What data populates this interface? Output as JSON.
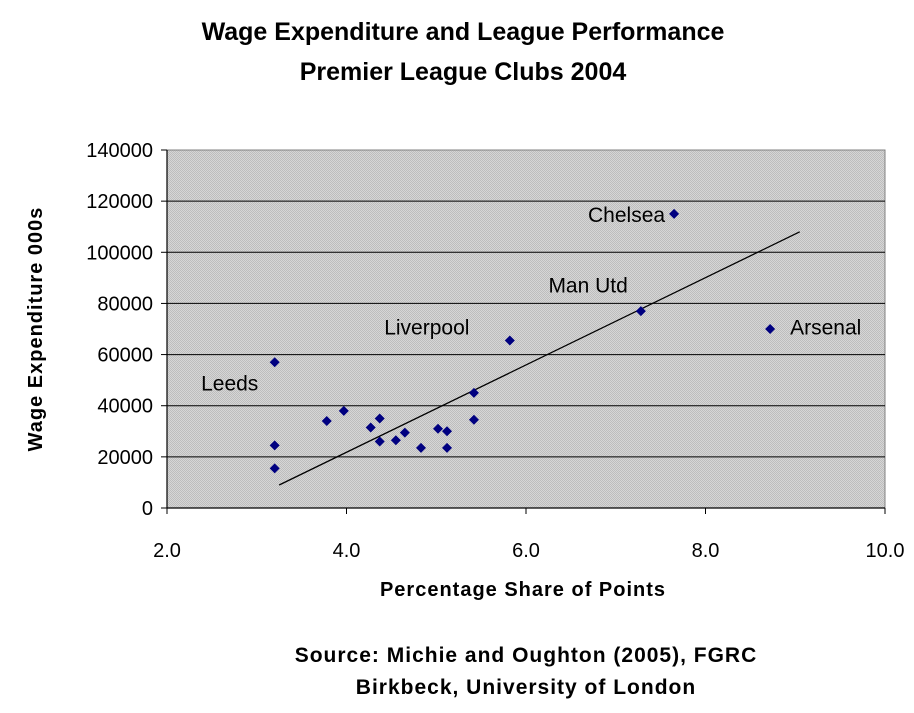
{
  "chart_data": {
    "type": "scatter",
    "title": "Wage Expenditure and League Performance",
    "subtitle": "Premier League Clubs 2004",
    "xlabel": "Percentage Share of Points",
    "ylabel": "Wage Expenditure 000s",
    "xlim": [
      2.0,
      10.0
    ],
    "ylim": [
      0,
      140000
    ],
    "xticks": [
      "2.0",
      "4.0",
      "6.0",
      "8.0",
      "10.0"
    ],
    "yticks": [
      "0",
      "20000",
      "40000",
      "60000",
      "80000",
      "100000",
      "120000",
      "140000"
    ],
    "grid": true,
    "plot_background": "#c0c0c0",
    "marker_color": "#000080",
    "points": [
      {
        "x": 3.2,
        "y": 57000
      },
      {
        "x": 3.2,
        "y": 24500
      },
      {
        "x": 3.2,
        "y": 15500
      },
      {
        "x": 3.78,
        "y": 34000
      },
      {
        "x": 3.97,
        "y": 38000
      },
      {
        "x": 4.27,
        "y": 31500
      },
      {
        "x": 4.37,
        "y": 35000
      },
      {
        "x": 4.37,
        "y": 26000
      },
      {
        "x": 4.55,
        "y": 26500
      },
      {
        "x": 4.65,
        "y": 29500
      },
      {
        "x": 4.83,
        "y": 23500
      },
      {
        "x": 5.02,
        "y": 31000
      },
      {
        "x": 5.12,
        "y": 30000
      },
      {
        "x": 5.12,
        "y": 23500
      },
      {
        "x": 5.42,
        "y": 45000
      },
      {
        "x": 5.42,
        "y": 34500
      },
      {
        "x": 5.82,
        "y": 65500
      },
      {
        "x": 7.28,
        "y": 77000
      },
      {
        "x": 7.65,
        "y": 115000
      },
      {
        "x": 8.72,
        "y": 70000
      }
    ],
    "trendline": {
      "x": [
        3.25,
        9.05
      ],
      "y": [
        9000,
        108000
      ]
    },
    "annotations": [
      {
        "text": "Chelsea",
        "x": 7.65,
        "y": 115000,
        "anchor": "end",
        "dx": -9
      },
      {
        "text": "Man Utd",
        "x": 6.25,
        "y": 87500,
        "anchor": "start",
        "dx": 0
      },
      {
        "text": "Liverpool",
        "x": 4.42,
        "y": 71000,
        "anchor": "start",
        "dx": 0
      },
      {
        "text": "Arsenal",
        "x": 8.72,
        "y": 71000,
        "anchor": "start",
        "dx": 20
      },
      {
        "text": "Leeds",
        "x": 2.38,
        "y": 49000,
        "anchor": "start",
        "dx": 0
      }
    ]
  },
  "source": {
    "line1": "Source: Michie and Oughton (2005), FGRC",
    "line2": "Birkbeck, University of London"
  }
}
